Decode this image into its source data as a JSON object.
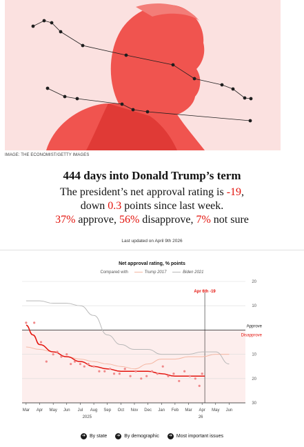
{
  "header": {
    "image_credit": "IMAGE: THE ECONOMIST/GETTY IMAGES",
    "headline": "444 days into Donald Trump’s term",
    "summary": {
      "line1_prefix": "The president’s net approval rating is ",
      "net_rating": "-19",
      "line1_suffix": ",",
      "line2_prefix": "down ",
      "change": "0.3",
      "line2_suffix": " points since last week.",
      "approve_value": "37%",
      "approve_label": " approve, ",
      "disapprove_value": "56%",
      "disapprove_label": " disapprove, ",
      "not_sure_value": "7%",
      "not_sure_label": " not sure"
    },
    "last_updated": "Last updated on April 9th 2026"
  },
  "footer_links": [
    {
      "label": "By state",
      "icon": "arrow-right-icon"
    },
    {
      "label": "By demographic",
      "icon": "arrow-right-icon"
    },
    {
      "label": "Most important issues",
      "icon": "arrow-right-icon"
    }
  ],
  "colors": {
    "accent": "#e3120b",
    "trump_2025": "#e3120b",
    "trump_2017": "#f4b6a2",
    "biden_2021": "#b8b8b8",
    "disapprove_band": "#fdeeed"
  },
  "chart_data": {
    "type": "line",
    "title": "Net approval rating, % points",
    "compared_with_label": "Compared with",
    "y_tick_labels": [
      "20",
      "10",
      "",
      "10",
      "20",
      "30"
    ],
    "y_ticks": [
      20,
      10,
      0,
      -10,
      -20,
      -30
    ],
    "ylim": [
      -30,
      20
    ],
    "approve_label": "Approve",
    "disapprove_label": "Disapprove",
    "x_ticks": [
      "Mar",
      "Apr",
      "May",
      "Jun",
      "Jul",
      "Aug",
      "Sep",
      "Oct",
      "Nov",
      "Dec",
      "Jan",
      "Feb",
      "Mar",
      "Apr",
      "May",
      "Jun"
    ],
    "year_labels": [
      {
        "label": "2025",
        "month_index": 4.5
      },
      {
        "label": "26",
        "month_index": 12.9
      }
    ],
    "xlim_months": [
      -0.3,
      16.2
    ],
    "annotation": {
      "label": "Apr 6th -19",
      "month_index": 13.2
    },
    "series": [
      {
        "name": "Trump 2017",
        "style": "solid",
        "color": "#f4b6a2",
        "x": [
          0,
          1,
          2,
          3,
          4,
          5,
          6,
          7,
          8,
          9,
          10,
          11,
          12,
          13,
          14,
          15
        ],
        "y": [
          -7,
          -8,
          -9,
          -11,
          -12,
          -13,
          -14,
          -15,
          -16,
          -14,
          -12,
          -12,
          -11,
          -11,
          -10,
          -10
        ]
      },
      {
        "name": "Biden 2021",
        "style": "solid",
        "color": "#b8b8b8",
        "x": [
          0,
          1,
          2,
          3,
          4,
          5,
          6,
          7,
          8,
          9,
          10,
          11,
          12,
          13,
          14,
          15
        ],
        "y": [
          12,
          12,
          11,
          11,
          10,
          6,
          -2,
          -6,
          -8,
          -8,
          -10,
          -10,
          -10,
          -9,
          -9,
          -14
        ]
      },
      {
        "name": "Trump 2025",
        "style": "solid",
        "color": "#e3120b",
        "x": [
          0,
          0.5,
          1,
          2,
          3,
          4,
          5,
          6,
          7,
          8,
          9,
          10,
          11,
          12,
          13.2
        ],
        "y": [
          2,
          -2,
          -6,
          -9,
          -11,
          -13,
          -15,
          -16,
          -17,
          -17,
          -17,
          -18,
          -19,
          -19,
          -19
        ]
      },
      {
        "name": "Poll results",
        "style": "dots",
        "color": "#f0898a",
        "x": [
          0,
          0.6,
          1.1,
          1.5,
          2,
          2.3,
          2.6,
          3,
          3.3,
          3.6,
          4,
          4.3,
          4.6,
          5,
          5.4,
          5.8,
          6.2,
          6.5,
          6.9,
          7.3,
          7.7,
          8.1,
          8.5,
          8.9,
          9.3,
          9.7,
          10.1,
          10.5,
          10.9,
          11.3,
          11.7,
          12.1,
          12.5,
          12.8,
          13.0
        ],
        "y": [
          3,
          3,
          -5,
          -13,
          -10,
          -9,
          -11,
          -10,
          -14,
          -13,
          -14,
          -15,
          -14,
          -15,
          -17,
          -17,
          -16,
          -18,
          -18,
          -16,
          -19,
          -17,
          -20,
          -19,
          -17,
          -18,
          -15,
          -19,
          -18,
          -21,
          -17,
          -19,
          -20,
          -23,
          -18
        ]
      }
    ]
  }
}
